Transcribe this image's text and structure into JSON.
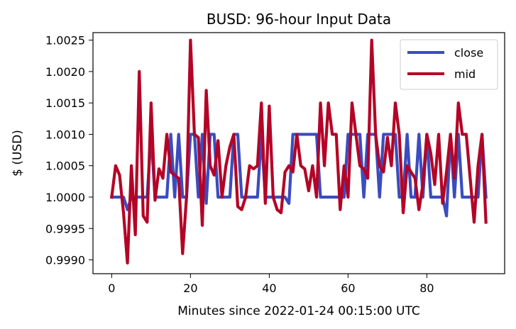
{
  "chart_data": {
    "type": "line",
    "title": "BUSD: 96-hour Input Data",
    "xlabel": "Minutes since 2022-01-24 00:15:00 UTC",
    "ylabel": "$ (USD)",
    "xlim": [
      -4.75,
      99.75
    ],
    "ylim": [
      0.99878,
      1.00262
    ],
    "xticks": [
      0,
      20,
      40,
      60,
      80
    ],
    "xtick_labels": [
      "0",
      "20",
      "40",
      "60",
      "80"
    ],
    "yticks": [
      0.999,
      0.9995,
      1.0,
      1.0005,
      1.001,
      1.0015,
      1.002,
      1.0025
    ],
    "ytick_labels": [
      "0.9990",
      "0.9995",
      "1.0000",
      "1.0005",
      "1.0010",
      "1.0015",
      "1.0020",
      "1.0025"
    ],
    "grid": false,
    "legend_position": "top-right",
    "x": [
      0,
      1,
      2,
      3,
      4,
      5,
      6,
      7,
      8,
      9,
      10,
      11,
      12,
      13,
      14,
      15,
      16,
      17,
      18,
      19,
      20,
      21,
      22,
      23,
      24,
      25,
      26,
      27,
      28,
      29,
      30,
      31,
      32,
      33,
      34,
      35,
      36,
      37,
      38,
      39,
      40,
      41,
      42,
      43,
      44,
      45,
      46,
      47,
      48,
      49,
      50,
      51,
      52,
      53,
      54,
      55,
      56,
      57,
      58,
      59,
      60,
      61,
      62,
      63,
      64,
      65,
      66,
      67,
      68,
      69,
      70,
      71,
      72,
      73,
      74,
      75,
      76,
      77,
      78,
      79,
      80,
      81,
      82,
      83,
      84,
      85,
      86,
      87,
      88,
      89,
      90,
      91,
      92,
      93,
      94,
      95
    ],
    "series": [
      {
        "name": "close",
        "color": "#3b4cc0",
        "values": [
          1.0,
          1.0,
          1.0,
          1.0,
          0.9998,
          1.0,
          1.0,
          1.0,
          1.0,
          1.0,
          1.001,
          1.0,
          1.0,
          1.0,
          1.0,
          1.001,
          1.0,
          1.001,
          1.0,
          1.0,
          1.001,
          1.001,
          1.0,
          1.001,
          0.9999,
          1.001,
          1.001,
          1.0,
          1.0,
          1.0,
          1.0,
          1.001,
          1.001,
          1.0,
          1.0,
          1.0,
          1.0,
          1.0,
          1.001,
          1.0,
          1.0,
          1.0,
          1.0,
          1.0,
          1.0,
          0.9999,
          1.001,
          1.001,
          1.001,
          1.001,
          1.001,
          1.001,
          1.001,
          1.0,
          1.0,
          1.0,
          1.0,
          1.0,
          1.0,
          1.0,
          1.001,
          1.001,
          1.001,
          1.001,
          1.0,
          1.001,
          1.001,
          1.001,
          1.0,
          1.001,
          1.001,
          1.001,
          1.001,
          1.0,
          1.0,
          1.001,
          1.0,
          1.0,
          1.001,
          1.0,
          1.001,
          1.0,
          1.0,
          1.0,
          1.0,
          0.9997,
          1.001,
          1.0,
          1.001,
          1.0,
          1.0,
          1.0,
          1.0,
          1.0,
          1.001,
          1.0
        ]
      },
      {
        "name": "mid",
        "color": "#b40426",
        "values": [
          1.0,
          1.0005,
          1.00035,
          0.99975,
          0.99895,
          1.0005,
          0.9994,
          1.002,
          0.9997,
          0.9996,
          1.0015,
          0.99995,
          1.00045,
          1.0003,
          1.001,
          1.0004,
          1.00035,
          1.0003,
          0.9991,
          1.0,
          1.0025,
          1.001,
          1.00095,
          0.99955,
          1.0017,
          1.0005,
          1.00035,
          1.0009,
          1.0,
          1.0005,
          1.0008,
          1.001,
          0.99985,
          0.9998,
          1.0,
          1.0005,
          1.00045,
          1.0005,
          1.0015,
          0.9999,
          1.00145,
          1.0,
          0.9998,
          0.99975,
          1.0004,
          1.0005,
          1.0004,
          1.001,
          1.0005,
          1.00045,
          1.0001,
          1.0005,
          1.0,
          1.0015,
          1.0005,
          1.0015,
          1.001,
          1.001,
          0.9998,
          1.0005,
          1.0,
          1.0015,
          1.001,
          1.0005,
          1.00045,
          1.0003,
          1.0025,
          1.001,
          1.0005,
          1.0004,
          1.00095,
          1.0005,
          1.0015,
          1.001,
          0.99975,
          1.0005,
          1.0004,
          1.0003,
          0.9998,
          1.0002,
          1.001,
          1.0007,
          1.0002,
          1.001,
          0.9999,
          1.0004,
          1.001,
          1.0003,
          1.0015,
          1.001,
          1.001,
          1.0003,
          0.9996,
          1.0005,
          1.001,
          0.9996
        ]
      }
    ]
  }
}
